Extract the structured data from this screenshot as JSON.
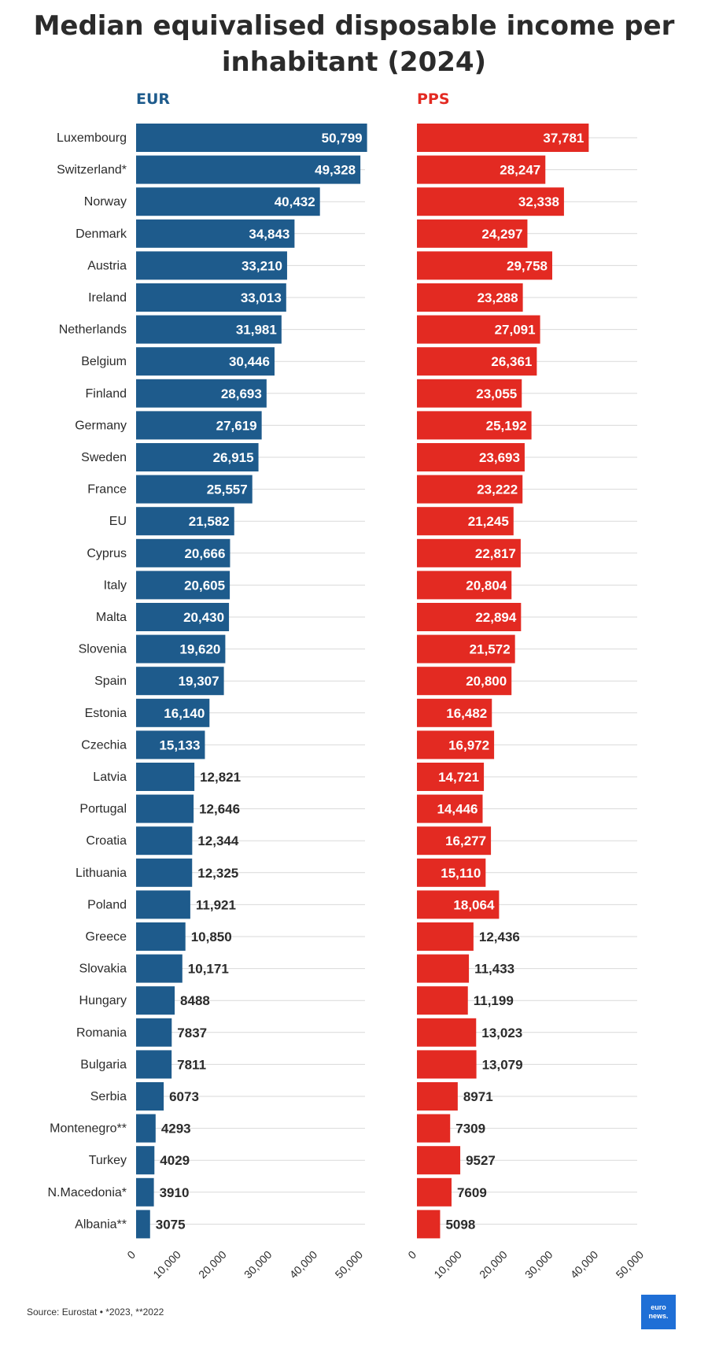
{
  "title": "Median equivalised disposable income per inhabitant (2024)",
  "source": "Source: Eurostat • *2023, **2022",
  "logo_text": "euro news.",
  "colors": {
    "eur": "#1e5b8c",
    "pps": "#e32a22",
    "grid": "#d9d9d9",
    "label": "#2b2b2b"
  },
  "chart_data": {
    "type": "bar",
    "orientation": "horizontal",
    "categories": [
      "Luxembourg",
      "Switzerland*",
      "Norway",
      "Denmark",
      "Austria",
      "Ireland",
      "Netherlands",
      "Belgium",
      "Finland",
      "Germany",
      "Sweden",
      "France",
      "EU",
      "Cyprus",
      "Italy",
      "Malta",
      "Slovenia",
      "Spain",
      "Estonia",
      "Czechia",
      "Latvia",
      "Portugal",
      "Croatia",
      "Lithuania",
      "Poland",
      "Greece",
      "Slovakia",
      "Hungary",
      "Romania",
      "Bulgaria",
      "Serbia",
      "Montenegro**",
      "Turkey",
      "N.Macedonia*",
      "Albania**"
    ],
    "series": [
      {
        "name": "EUR",
        "values": [
          50799,
          49328,
          40432,
          34843,
          33210,
          33013,
          31981,
          30446,
          28693,
          27619,
          26915,
          25557,
          21582,
          20666,
          20605,
          20430,
          19620,
          19307,
          16140,
          15133,
          12821,
          12646,
          12344,
          12325,
          11921,
          10850,
          10171,
          8488,
          7837,
          7811,
          6073,
          4293,
          4029,
          3910,
          3075
        ],
        "labels": [
          "50,799",
          "49,328",
          "40,432",
          "34,843",
          "33,210",
          "33,013",
          "31,981",
          "30,446",
          "28,693",
          "27,619",
          "26,915",
          "25,557",
          "21,582",
          "20,666",
          "20,605",
          "20,430",
          "19,620",
          "19,307",
          "16,140",
          "15,133",
          "12,821",
          "12,646",
          "12,344",
          "12,325",
          "11,921",
          "10,850",
          "10,171",
          "8488",
          "7837",
          "7811",
          "6073",
          "4293",
          "4029",
          "3910",
          "3075"
        ]
      },
      {
        "name": "PPS",
        "values": [
          37781,
          28247,
          32338,
          24297,
          29758,
          23288,
          27091,
          26361,
          23055,
          25192,
          23693,
          23222,
          21245,
          22817,
          20804,
          22894,
          21572,
          20800,
          16482,
          16972,
          14721,
          14446,
          16277,
          15110,
          18064,
          12436,
          11433,
          11199,
          13023,
          13079,
          8971,
          7309,
          9527,
          7609,
          5098
        ],
        "labels": [
          "37,781",
          "28,247",
          "32,338",
          "24,297",
          "29,758",
          "23,288",
          "27,091",
          "26,361",
          "23,055",
          "25,192",
          "23,693",
          "23,222",
          "21,245",
          "22,817",
          "20,804",
          "22,894",
          "21,572",
          "20,800",
          "16,482",
          "16,972",
          "14,721",
          "14,446",
          "16,277",
          "15,110",
          "18,064",
          "12,436",
          "11,433",
          "11,199",
          "13,023",
          "13,079",
          "8971",
          "7309",
          "9527",
          "7609",
          "5098"
        ]
      }
    ],
    "xlim": [
      0,
      50000
    ],
    "ticks": [
      0,
      10000,
      20000,
      30000,
      40000,
      50000
    ],
    "tick_labels": [
      "0",
      "10,000",
      "20,000",
      "30,000",
      "40,000",
      "50,000"
    ],
    "inside_label_threshold": 14000,
    "grid": true
  }
}
